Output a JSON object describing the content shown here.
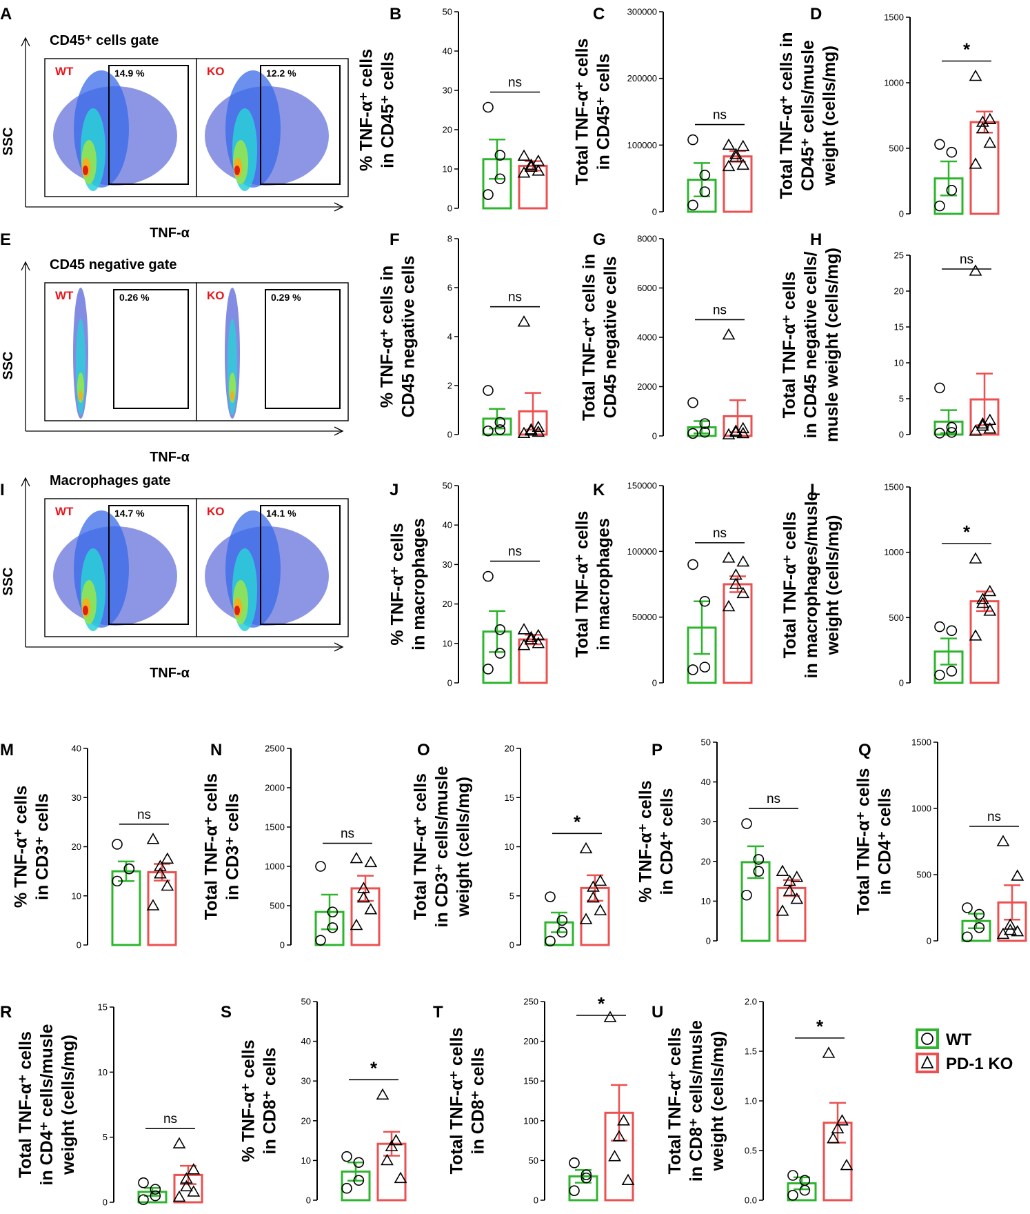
{
  "colors": {
    "wt": "#2db52d",
    "ko": "#ec5050",
    "axis": "#000000"
  },
  "legend": {
    "wt_label": "WT",
    "ko_label": "PD-1 KO"
  },
  "flow_panels": [
    {
      "letter": "A",
      "gate": "CD45⁺ cells gate",
      "xlabel": "TNF-α",
      "ylabel": "SSC",
      "geno_wt": "WT",
      "geno_ko": "KO",
      "pct_wt": "14.9 %",
      "pct_ko": "12.2 %",
      "shape": "broad"
    },
    {
      "letter": "E",
      "gate": "CD45 negative gate",
      "xlabel": "TNF-α",
      "ylabel": "SSC",
      "geno_wt": "WT",
      "geno_ko": "KO",
      "pct_wt": "0.26 %",
      "pct_ko": "0.29 %",
      "shape": "narrow"
    },
    {
      "letter": "I",
      "gate": "Macrophages gate",
      "xlabel": "TNF-α",
      "ylabel": "SSC",
      "geno_wt": "WT",
      "geno_ko": "KO",
      "pct_wt": "14.7 %",
      "pct_ko": "14.1 %",
      "shape": "broad"
    }
  ],
  "chart_data": [
    {
      "letter": "B",
      "type": "bar",
      "ylabel": [
        "% TNF-α⁺ cells",
        "in CD45⁺ cells"
      ],
      "ylim": [
        0,
        50
      ],
      "ticks": [
        0,
        10,
        20,
        30,
        40,
        50
      ],
      "sig": "ns",
      "series": [
        {
          "name": "WT",
          "mean": 12.5,
          "sem": 5,
          "points": [
            25.7,
            13.5,
            7.5,
            3.5
          ]
        },
        {
          "name": "PD-1 KO",
          "mean": 10.8,
          "sem": 1.2,
          "points": [
            13.3,
            12,
            11,
            10.5,
            9.5,
            9
          ]
        }
      ]
    },
    {
      "letter": "C",
      "type": "bar",
      "ylabel": [
        "Total TNF-α⁺ cells",
        "in CD45⁺ cells"
      ],
      "ylim": [
        0,
        300000
      ],
      "ticks": [
        0,
        100000,
        200000,
        300000
      ],
      "sig": "ns",
      "series": [
        {
          "name": "WT",
          "mean": 48000,
          "sem": 25000,
          "points": [
            108000,
            55000,
            30000,
            10000
          ]
        },
        {
          "name": "PD-1 KO",
          "mean": 83000,
          "sem": 8000,
          "points": [
            100000,
            98000,
            86000,
            82000,
            70000,
            68000
          ]
        }
      ]
    },
    {
      "letter": "D",
      "type": "bar",
      "ylabel": [
        "Total TNF-α⁺ cells in",
        "CD45⁺ cells/musle",
        "weight (cells/mg)"
      ],
      "ylim": [
        0,
        1500
      ],
      "ticks": [
        0,
        500,
        1000,
        1500
      ],
      "sig": "*",
      "series": [
        {
          "name": "WT",
          "mean": 270,
          "sem": 130,
          "points": [
            530,
            470,
            180,
            60
          ]
        },
        {
          "name": "PD-1 KO",
          "mean": 700,
          "sem": 80,
          "points": [
            1050,
            720,
            700,
            650,
            540,
            380
          ]
        }
      ]
    },
    {
      "letter": "F",
      "type": "bar",
      "ylabel": [
        "% TNF-α⁺ cells in",
        "CD45 negative cells"
      ],
      "ylim": [
        0,
        8
      ],
      "ticks": [
        0,
        2,
        4,
        6,
        8
      ],
      "sig": "ns",
      "series": [
        {
          "name": "WT",
          "mean": 0.65,
          "sem": 0.4,
          "points": [
            1.8,
            0.5,
            0.2,
            0.15
          ]
        },
        {
          "name": "PD-1 KO",
          "mean": 0.95,
          "sem": 0.75,
          "points": [
            4.6,
            0.3,
            0.2,
            0.15,
            0.1,
            0.05
          ]
        }
      ]
    },
    {
      "letter": "G",
      "type": "bar",
      "ylabel": [
        "Total TNF-α⁺ cells in",
        "CD45 negative cells"
      ],
      "ylim": [
        0,
        8000
      ],
      "ticks": [
        0,
        2000,
        4000,
        6000,
        8000
      ],
      "sig": "ns",
      "series": [
        {
          "name": "WT",
          "mean": 350,
          "sem": 250,
          "points": [
            1350,
            500,
            150,
            100
          ]
        },
        {
          "name": "PD-1 KO",
          "mean": 800,
          "sem": 650,
          "points": [
            4100,
            300,
            200,
            150,
            100,
            50
          ]
        }
      ]
    },
    {
      "letter": "H",
      "type": "bar",
      "ylabel": [
        "Total TNF-α⁺ cells",
        "in CD45 negative cells/",
        "musle weight (cells/mg)"
      ],
      "ylim": [
        0,
        25
      ],
      "ticks": [
        0,
        5,
        10,
        15,
        20,
        25
      ],
      "sig": "ns",
      "series": [
        {
          "name": "WT",
          "mean": 1.8,
          "sem": 1.6,
          "points": [
            6.5,
            1,
            0.3,
            0.2
          ]
        },
        {
          "name": "PD-1 KO",
          "mean": 4.9,
          "sem": 3.6,
          "points": [
            22.8,
            2,
            1.5,
            1.2,
            0.8,
            0.5
          ]
        }
      ]
    },
    {
      "letter": "J",
      "type": "bar",
      "ylabel": [
        "% TNF-α⁺ cells",
        "in macrophages"
      ],
      "ylim": [
        0,
        50
      ],
      "ticks": [
        0,
        10,
        20,
        30,
        40,
        50
      ],
      "sig": "ns",
      "series": [
        {
          "name": "WT",
          "mean": 13,
          "sem": 5.2,
          "points": [
            27,
            13.5,
            7.5,
            3.5
          ]
        },
        {
          "name": "PD-1 KO",
          "mean": 11,
          "sem": 1.2,
          "points": [
            13.5,
            12,
            11.5,
            11,
            10,
            9.5
          ]
        }
      ]
    },
    {
      "letter": "K",
      "type": "bar",
      "ylabel": [
        "Total TNF-α⁺ cells",
        "in macrophages"
      ],
      "ylim": [
        0,
        150000
      ],
      "ticks": [
        0,
        50000,
        100000,
        150000
      ],
      "sig": "ns",
      "series": [
        {
          "name": "WT",
          "mean": 42000,
          "sem": 20000,
          "points": [
            90000,
            62000,
            12000,
            10000
          ]
        },
        {
          "name": "PD-1 KO",
          "mean": 75000,
          "sem": 6000,
          "points": [
            95000,
            92000,
            82000,
            75000,
            68000,
            58000
          ]
        }
      ]
    },
    {
      "letter": "L",
      "type": "bar",
      "ylabel": [
        "Total TNF-α⁺ cells",
        "in macrophages/musle",
        "weight (cells/mg)"
      ],
      "ylim": [
        0,
        1500
      ],
      "ticks": [
        0,
        500,
        1000,
        1500
      ],
      "sig": "*",
      "series": [
        {
          "name": "WT",
          "mean": 240,
          "sem": 100,
          "points": [
            430,
            400,
            90,
            60
          ]
        },
        {
          "name": "PD-1 KO",
          "mean": 625,
          "sem": 75,
          "points": [
            950,
            700,
            640,
            610,
            550,
            360
          ]
        }
      ]
    },
    {
      "letter": "M",
      "type": "bar",
      "ylabel": [
        "% TNF-α⁺ cells",
        "in CD3⁺ cells"
      ],
      "ylim": [
        0,
        40
      ],
      "ticks": [
        0,
        10,
        20,
        30,
        40
      ],
      "sig": "ns",
      "series": [
        {
          "name": "WT",
          "mean": 15,
          "sem": 2,
          "points": [
            20.5,
            15.5,
            15.5,
            13
          ]
        },
        {
          "name": "PD-1 KO",
          "mean": 14.8,
          "sem": 1.7,
          "points": [
            21.5,
            17.5,
            16,
            14.5,
            12,
            8
          ]
        }
      ]
    },
    {
      "letter": "N",
      "type": "bar",
      "ylabel": [
        "Total TNF-α⁺ cells",
        "in CD3⁺ cells"
      ],
      "ylim": [
        0,
        2500
      ],
      "ticks": [
        0,
        500,
        1000,
        1500,
        2000,
        2500
      ],
      "sig": "ns",
      "series": [
        {
          "name": "WT",
          "mean": 420,
          "sem": 220,
          "points": [
            1000,
            420,
            220,
            60
          ]
        },
        {
          "name": "PD-1 KO",
          "mean": 720,
          "sem": 160,
          "points": [
            1100,
            1050,
            720,
            600,
            450,
            250
          ]
        }
      ]
    },
    {
      "letter": "O",
      "type": "bar",
      "ylabel": [
        "Total TNF-α⁺ cells",
        "in CD3⁺ cells/musle",
        "weight (cells/mg)"
      ],
      "ylim": [
        0,
        20
      ],
      "ticks": [
        0,
        5,
        10,
        15,
        20
      ],
      "sig": "*",
      "series": [
        {
          "name": "WT",
          "mean": 2.3,
          "sem": 1,
          "points": [
            4.9,
            2.5,
            1.3,
            0.4
          ]
        },
        {
          "name": "PD-1 KO",
          "mean": 5.8,
          "sem": 1.3,
          "points": [
            9.8,
            6.5,
            5.9,
            4.8,
            3.5,
            2.6
          ]
        }
      ]
    },
    {
      "letter": "P",
      "type": "bar",
      "ylabel": [
        "% TNF-α⁺ cells",
        "in CD4⁺ cells"
      ],
      "ylim": [
        0,
        50
      ],
      "ticks": [
        0,
        10,
        20,
        30,
        40,
        50
      ],
      "sig": "ns",
      "series": [
        {
          "name": "WT",
          "mean": 19.8,
          "sem": 4,
          "points": [
            29.5,
            20.5,
            17.5,
            11.5
          ]
        },
        {
          "name": "PD-1 KO",
          "mean": 13.3,
          "sem": 2,
          "points": [
            17.5,
            16,
            15,
            12.5,
            10.5,
            7.5
          ]
        }
      ]
    },
    {
      "letter": "Q",
      "type": "bar",
      "ylabel": [
        "Total TNF-α⁺ cells",
        "in CD4⁺ cells"
      ],
      "ylim": [
        0,
        1500
      ],
      "ticks": [
        0,
        500,
        1000,
        1500
      ],
      "sig": "ns",
      "series": [
        {
          "name": "WT",
          "mean": 150,
          "sem": 55,
          "points": [
            250,
            200,
            100,
            30
          ]
        },
        {
          "name": "PD-1 KO",
          "mean": 290,
          "sem": 130,
          "points": [
            750,
            490,
            120,
            80,
            70,
            50
          ]
        }
      ]
    },
    {
      "letter": "R",
      "type": "bar",
      "ylabel": [
        "Total TNF-α⁺ cells",
        "in CD4⁺ cells/musle",
        "weight (cells/mg)"
      ],
      "ylim": [
        0,
        15
      ],
      "ticks": [
        0,
        5,
        10,
        15
      ],
      "sig": "ns",
      "series": [
        {
          "name": "WT",
          "mean": 0.8,
          "sem": 0.3,
          "points": [
            1.5,
            1.0,
            0.5,
            0.2
          ]
        },
        {
          "name": "PD-1 KO",
          "mean": 2.1,
          "sem": 0.7,
          "points": [
            4.5,
            2.5,
            1.8,
            1.2,
            0.8,
            0.4
          ]
        }
      ]
    },
    {
      "letter": "S",
      "type": "bar",
      "ylabel": [
        "% TNF-α⁺ cells",
        "in CD8⁺ cells"
      ],
      "ylim": [
        0,
        50
      ],
      "ticks": [
        0,
        10,
        20,
        30,
        40,
        50
      ],
      "sig": "*",
      "series": [
        {
          "name": "WT",
          "mean": 7.2,
          "sem": 2.3,
          "points": [
            11,
            9.5,
            5,
            3
          ]
        },
        {
          "name": "PD-1 KO",
          "mean": 14.2,
          "sem": 3,
          "points": [
            26.5,
            15,
            13.5,
            10,
            5.5
          ]
        }
      ]
    },
    {
      "letter": "T",
      "type": "bar",
      "ylabel": [
        "Total TNF-α⁺ cells",
        "in CD8⁺ cells"
      ],
      "ylim": [
        0,
        250
      ],
      "ticks": [
        0,
        50,
        100,
        150,
        200,
        250
      ],
      "sig": "*",
      "series": [
        {
          "name": "WT",
          "mean": 30,
          "sem": 8,
          "points": [
            47,
            32,
            28,
            12
          ]
        },
        {
          "name": "PD-1 KO",
          "mean": 110,
          "sem": 35,
          "points": [
            230,
            100,
            80,
            55,
            25
          ]
        }
      ]
    },
    {
      "letter": "U",
      "type": "bar",
      "ylabel": [
        "Total TNF-α⁺ cells",
        "in CD8⁺ cells/musle",
        "weight (cells/mg)"
      ],
      "ylim": [
        0,
        2.0
      ],
      "ticks": [
        0,
        0.5,
        1.0,
        1.5,
        2.0
      ],
      "sig": "*",
      "series": [
        {
          "name": "WT",
          "mean": 0.17,
          "sem": 0.06,
          "points": [
            0.25,
            0.2,
            0.1,
            0.05
          ]
        },
        {
          "name": "PD-1 KO",
          "mean": 0.78,
          "sem": 0.2,
          "points": [
            1.48,
            0.8,
            0.72,
            0.62,
            0.35
          ]
        }
      ]
    }
  ]
}
